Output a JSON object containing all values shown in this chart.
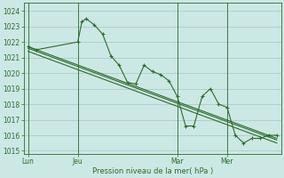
{
  "background_color": "#cce8e4",
  "grid_color": "#aaccc8",
  "line_color": "#2d6b2d",
  "marker_color": "#2d6b2d",
  "xlabel": "Pression niveau de la mer( hPa )",
  "ylim": [
    1014.8,
    1024.5
  ],
  "yticks": [
    1015,
    1016,
    1017,
    1018,
    1019,
    1020,
    1021,
    1022,
    1023,
    1024
  ],
  "day_labels": [
    "Lun",
    "Jeu",
    "Mar",
    "Mer"
  ],
  "day_positions": [
    0,
    12,
    36,
    48
  ],
  "series1_x": [
    0,
    2,
    12,
    13,
    14,
    16,
    18,
    20,
    22,
    24,
    26,
    28,
    30,
    32,
    34,
    36,
    38,
    40,
    42,
    44,
    46,
    48,
    50,
    52,
    54,
    56,
    58,
    60
  ],
  "series1_y": [
    1021.7,
    1021.5,
    1022.0,
    1023.3,
    1023.5,
    1023.1,
    1022.5,
    1021.1,
    1020.5,
    1019.4,
    1019.3,
    1020.5,
    1020.1,
    1019.9,
    1019.5,
    1018.5,
    1016.6,
    1016.6,
    1018.5,
    1019.0,
    1018.0,
    1017.8,
    1016.0,
    1015.5,
    1015.8,
    1015.8,
    1016.0,
    1016.0
  ],
  "series2_x": [
    0,
    60
  ],
  "series2_y": [
    1021.7,
    1015.8
  ],
  "series3_x": [
    0,
    60
  ],
  "series3_y": [
    1021.6,
    1015.7
  ],
  "series4_x": [
    0,
    60
  ],
  "series4_y": [
    1021.4,
    1015.5
  ],
  "xlim": [
    -1,
    61
  ],
  "figsize": [
    3.2,
    2.0
  ],
  "dpi": 100
}
